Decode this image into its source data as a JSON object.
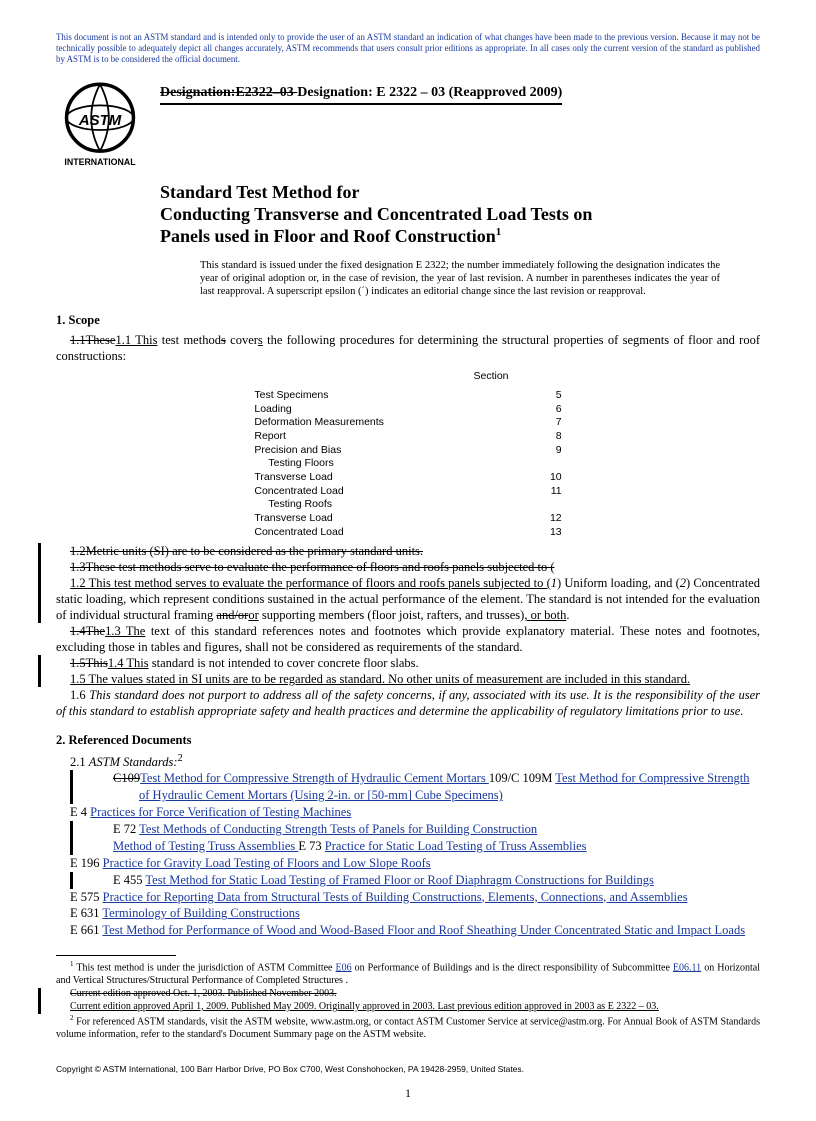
{
  "colors": {
    "link": "#1a3a9e",
    "text": "#000000",
    "bg": "#ffffff"
  },
  "notice": "This document is not an ASTM standard and is intended only to provide the user of an ASTM standard an indication of what changes have been made to the previous version. Because it may not be technically possible to adequately depict all changes accurately, ASTM recommends that users consult prior editions as appropriate. In all cases only the current version of the standard as published by ASTM is to be considered the official document.",
  "logo_label": "INTERNATIONAL",
  "designation": {
    "old_prefix": "Designation:E2322–03 ",
    "new": "Designation: E 2322 – 03 (Reapproved 2009)"
  },
  "title": {
    "line1": "Standard Test Method for",
    "line2": "Conducting Transverse and Concentrated Load Tests on",
    "line3": "Panels used in Floor and Roof Construction",
    "super": "1"
  },
  "issued_note": "This standard is issued under the fixed designation E 2322; the number immediately following the designation indicates the year of original adoption or, in the case of revision, the year of last revision. A number in parentheses indicates the year of last reapproval. A superscript epsilon (´) indicates an editorial change since the last revision or reapproval.",
  "scope": {
    "heading": "1. Scope",
    "p1_old": "1.1These",
    "p1_new": "1.1 This",
    "p1_rest": " test method",
    "p1_s": "s",
    "p1_end": " cover",
    "p1_s2": "s",
    "p1_tail": " the following procedures for determining the structural properties of segments of floor and roof constructions:",
    "table_header_left": "",
    "table_header_right": "Section",
    "rows": [
      {
        "label": "Test Specimens",
        "section": "5"
      },
      {
        "label": "Loading",
        "section": "6"
      },
      {
        "label": "Deformation Measurements",
        "section": "7"
      },
      {
        "label": "Report",
        "section": "8"
      },
      {
        "label": "Precision and Bias",
        "section": "9"
      },
      {
        "label": "Testing Floors",
        "section": "",
        "sub": true
      },
      {
        "label": "Transverse Load",
        "section": "10"
      },
      {
        "label": "Concentrated Load",
        "section": "11"
      },
      {
        "label": "Testing Roofs",
        "section": "",
        "sub": true
      },
      {
        "label": "Transverse Load",
        "section": "12"
      },
      {
        "label": "Concentrated Load",
        "section": "13"
      }
    ],
    "p12_strike": "1.2Metric units (SI) are to be considered as the primary standard units.",
    "p13_strike": "1.3These test methods serve to evaluate the performance of floors and roofs panels subjected to (",
    "p12_new": "1.2 This test method serves to evaluate the performance of floors and roofs panels subjected to (",
    "p12_i1": "1",
    "p12_mid": ") Uniform loading, and (",
    "p12_i2": "2",
    "p12_end": ") Concentrated static loading, which represent conditions sustained in the actual performance of the element. The standard is not intended for the evaluation of individual structural framing ",
    "p12_strike2": "and/or",
    "p12_ins": "or",
    "p12_tail": " supporting members (floor joist, rafters, and trusses)",
    "p12_ins2": ", or both",
    "p12_dot": ".",
    "p14_old": "1.4The",
    "p13_new": "1.3 The",
    "p13_rest": " text of this standard references notes and footnotes which provide explanatory material. These notes and footnotes, excluding those in tables and figures, shall not be considered as requirements of the standard.",
    "p15_old": "1.5This",
    "p14_new": "1.4 This",
    "p14_rest": " standard is not intended to cover concrete floor slabs.",
    "p15_new": "1.5 The values stated in SI units are to be regarded as standard. No other units of measurement are included in this standard.",
    "p16": "1.6 ",
    "p16_italic": "This standard does not purport to address all of the safety concerns, if any, associated with its use. It is the responsibility of the user of this standard to establish appropriate safety and health practices and determine the applicability of regulatory limitations prior to use."
  },
  "refdocs": {
    "heading": "2. Referenced Documents",
    "sub": "2.1 ",
    "sub_italic": "ASTM Standards:",
    "sub_sup": "2",
    "items": [
      {
        "old": "C109",
        "old_title": "Test Method for Compressive Strength of Hydraulic Cement Mortars ",
        "num": "109/C 109M",
        "title": "Test Method for Compressive Strength of Hydraulic Cement Mortars (Using 2-in. or [50-mm] Cube Specimens)"
      },
      {
        "num": "E 4",
        "title": "Practices for Force Verification of Testing Machines"
      },
      {
        "num": "E 72",
        "title": "Test Methods of Conducting Strength Tests of Panels for Building Construction",
        "ins_prefix": "Test "
      },
      {
        "num": "E 73",
        "old_title": "Method of Testing Truss Assemblies ",
        "title": "Practice for Static Load Testing of Truss Assemblies"
      },
      {
        "num": "E 196",
        "title": "Practice for Gravity Load Testing of Floors and Low Slope Roofs"
      },
      {
        "num": "E 455",
        "title": "Test Method for Static Load Testing of Framed Floor or Roof Diaphragm Constructions for Buildings",
        "ins_prefix": "Test "
      },
      {
        "num": "E 575",
        "title": "Practice for Reporting Data from Structural Tests of Building Constructions, Elements, Connections, and Assemblies"
      },
      {
        "num": "E 631",
        "title": "Terminology of Building Constructions"
      },
      {
        "num": "E 661",
        "title": "Test Method for Performance of Wood and Wood-Based Floor and Roof Sheathing Under Concentrated Static and Impact Loads"
      }
    ]
  },
  "footnotes": {
    "f1_a": " This test method is under the jurisdiction of ASTM Committee ",
    "f1_link1": "E06",
    "f1_b": " on Performance of Buildings and is the direct responsibility of Subcommittee ",
    "f1_link2": "E06.11",
    "f1_c": " on Horizontal and Vertical Structures/Structural Performance of Completed Structures .",
    "f1_strike": "Current edition approved Oct. 1, 2003. Published November 2003.",
    "f1_new": "Current edition approved April 1, 2009. Published May 2009. Originally approved in 2003. Last previous edition approved in 2003 as E 2322 – 03.",
    "f2": " For referenced ASTM standards, visit the ASTM website, www.astm.org, or contact ASTM Customer Service at service@astm.org. For Annual Book of ASTM Standards volume information, refer to the standard's Document Summary page on the ASTM website."
  },
  "copyright": "Copyright © ASTM International, 100 Barr Harbor Drive, PO Box C700, West Conshohocken, PA 19428-2959, United States.",
  "page_number": "1"
}
